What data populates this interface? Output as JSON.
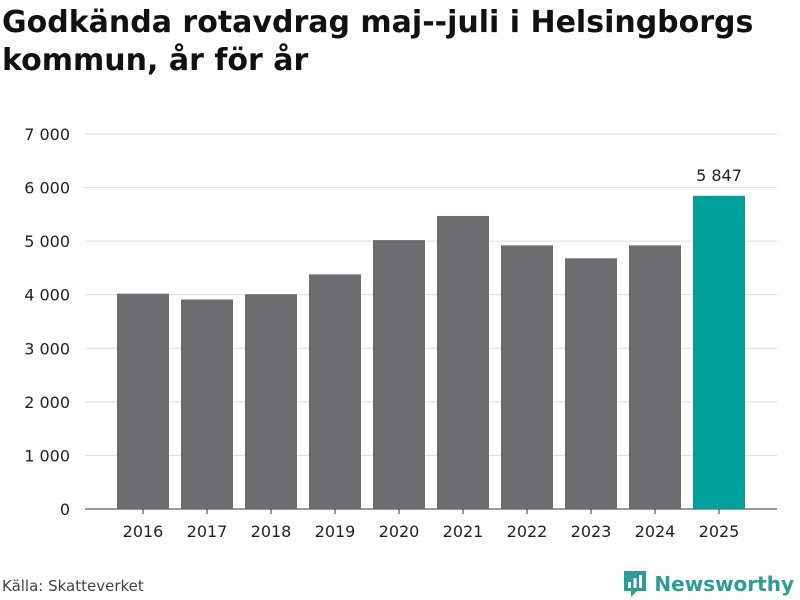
{
  "header": {
    "title": "Godkända rotavdrag maj--juli i Helsingborgs kommun, år för år"
  },
  "footer": {
    "source": "Källa: Skatteverket",
    "brand": "Newsworthy"
  },
  "colors": {
    "bar": "#6d6c71",
    "highlight": "#00a19a",
    "grid": "#dddddd",
    "brand": "#2a9d97"
  },
  "icons": {
    "brand_logo": "newsworthy-logo-icon"
  },
  "chart_data": {
    "type": "bar",
    "categories": [
      "2016",
      "2017",
      "2018",
      "2019",
      "2020",
      "2021",
      "2022",
      "2023",
      "2024",
      "2025"
    ],
    "values": [
      4020,
      3910,
      4010,
      4380,
      5020,
      5470,
      4920,
      4680,
      4920,
      5847
    ],
    "highlight_index": 9,
    "highlight_label": "5 847",
    "ylim": [
      0,
      7000
    ],
    "yticks": [
      0,
      1000,
      2000,
      3000,
      4000,
      5000,
      6000,
      7000
    ],
    "ytick_labels": [
      "0",
      "1 000",
      "2 000",
      "3 000",
      "4 000",
      "5 000",
      "6 000",
      "7 000"
    ],
    "grid": true,
    "xlabel": "",
    "ylabel": ""
  }
}
